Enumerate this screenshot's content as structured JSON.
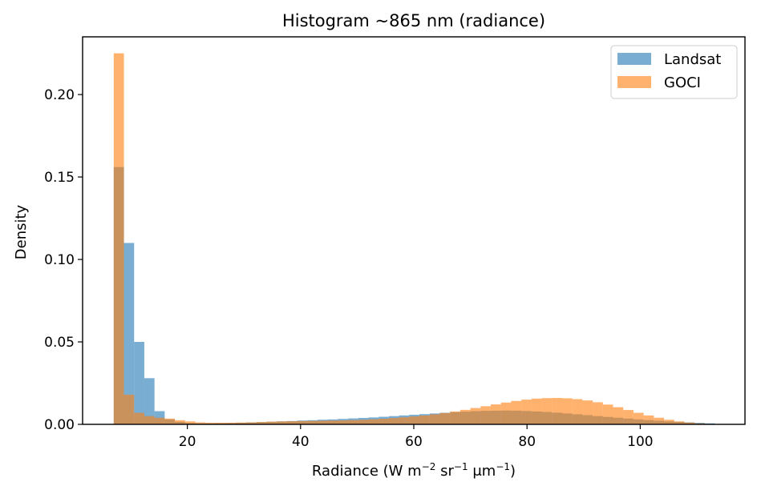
{
  "chart_data": {
    "type": "bar",
    "title": "Histogram ~865 nm (radiance)",
    "xlabel": "Radiance (W m",
    "xlabel_parts": [
      "Radiance (W m",
      "−2",
      " sr",
      "−1",
      " μm",
      "−1",
      ")"
    ],
    "ylabel": "Density",
    "xlim": [
      1.5,
      118.5
    ],
    "ylim": [
      0,
      0.235
    ],
    "xticks": [
      20,
      40,
      60,
      80,
      100
    ],
    "yticks": [
      0.0,
      0.05,
      0.1,
      0.15,
      0.2
    ],
    "ytick_labels": [
      "0.00",
      "0.05",
      "0.10",
      "0.15",
      "0.20"
    ],
    "xtick_labels": [
      "20",
      "40",
      "60",
      "80",
      "100"
    ],
    "legend_position": "top-right",
    "series": [
      {
        "name": "Landsat",
        "color": "#1f77b4",
        "alpha": 0.6,
        "bin_edges": [
          7.0,
          8.8,
          10.6,
          12.4,
          14.2,
          16.0,
          17.8,
          19.6,
          21.4,
          23.2,
          25.0,
          26.8,
          28.6,
          30.4,
          32.2,
          34.0,
          35.8,
          37.6,
          39.4,
          41.2,
          43.0,
          44.8,
          46.6,
          48.4,
          50.2,
          52.0,
          53.8,
          55.6,
          57.4,
          59.2,
          61.0,
          62.8,
          64.6,
          66.4,
          68.2,
          70.0,
          71.8,
          73.6,
          75.4,
          77.2,
          79.0,
          80.8,
          82.6,
          84.4,
          86.2,
          88.0,
          89.8,
          91.6,
          93.4,
          95.2,
          97.0,
          98.8,
          100.6,
          102.4,
          104.2,
          106.0,
          107.8,
          109.6,
          111.4,
          113.2
        ],
        "densities": [
          0.156,
          0.11,
          0.05,
          0.028,
          0.008,
          0.003,
          0.0015,
          0.0008,
          0.0006,
          0.0006,
          0.0007,
          0.0008,
          0.001,
          0.0012,
          0.0014,
          0.0016,
          0.0018,
          0.002,
          0.0023,
          0.0025,
          0.0028,
          0.003,
          0.0033,
          0.0036,
          0.0039,
          0.0042,
          0.0046,
          0.005,
          0.0054,
          0.0058,
          0.0062,
          0.0066,
          0.007,
          0.0074,
          0.0077,
          0.008,
          0.0082,
          0.0083,
          0.0084,
          0.0083,
          0.0081,
          0.0078,
          0.0075,
          0.0071,
          0.0066,
          0.0061,
          0.0056,
          0.005,
          0.0045,
          0.004,
          0.0035,
          0.003,
          0.0026,
          0.0022,
          0.0018,
          0.0015,
          0.0012,
          0.0009,
          0.0006
        ]
      },
      {
        "name": "GOCI",
        "color": "#ff7f0e",
        "alpha": 0.6,
        "bin_edges": [
          7.0,
          8.8,
          10.6,
          12.4,
          14.2,
          16.0,
          17.8,
          19.6,
          21.4,
          23.2,
          25.0,
          26.8,
          28.6,
          30.4,
          32.2,
          34.0,
          35.8,
          37.6,
          39.4,
          41.2,
          43.0,
          44.8,
          46.6,
          48.4,
          50.2,
          52.0,
          53.8,
          55.6,
          57.4,
          59.2,
          61.0,
          62.8,
          64.6,
          66.4,
          68.2,
          70.0,
          71.8,
          73.6,
          75.4,
          77.2,
          79.0,
          80.8,
          82.6,
          84.4,
          86.2,
          88.0,
          89.8,
          91.6,
          93.4,
          95.2,
          97.0,
          98.8,
          100.6,
          102.4,
          104.2,
          106.0,
          107.8,
          109.6,
          111.4
        ],
        "densities": [
          0.225,
          0.018,
          0.007,
          0.005,
          0.004,
          0.0035,
          0.0025,
          0.0018,
          0.0012,
          0.001,
          0.001,
          0.001,
          0.0011,
          0.0012,
          0.0014,
          0.0016,
          0.0018,
          0.0019,
          0.002,
          0.0021,
          0.0022,
          0.0023,
          0.0024,
          0.0026,
          0.0028,
          0.0031,
          0.0034,
          0.0038,
          0.0043,
          0.0048,
          0.0054,
          0.0061,
          0.0069,
          0.0078,
          0.0088,
          0.0099,
          0.011,
          0.0121,
          0.0132,
          0.0142,
          0.015,
          0.0156,
          0.0159,
          0.016,
          0.0158,
          0.0153,
          0.0145,
          0.0134,
          0.012,
          0.0104,
          0.0087,
          0.007,
          0.0054,
          0.004,
          0.0028,
          0.0018,
          0.0011,
          0.0006
        ]
      }
    ]
  }
}
